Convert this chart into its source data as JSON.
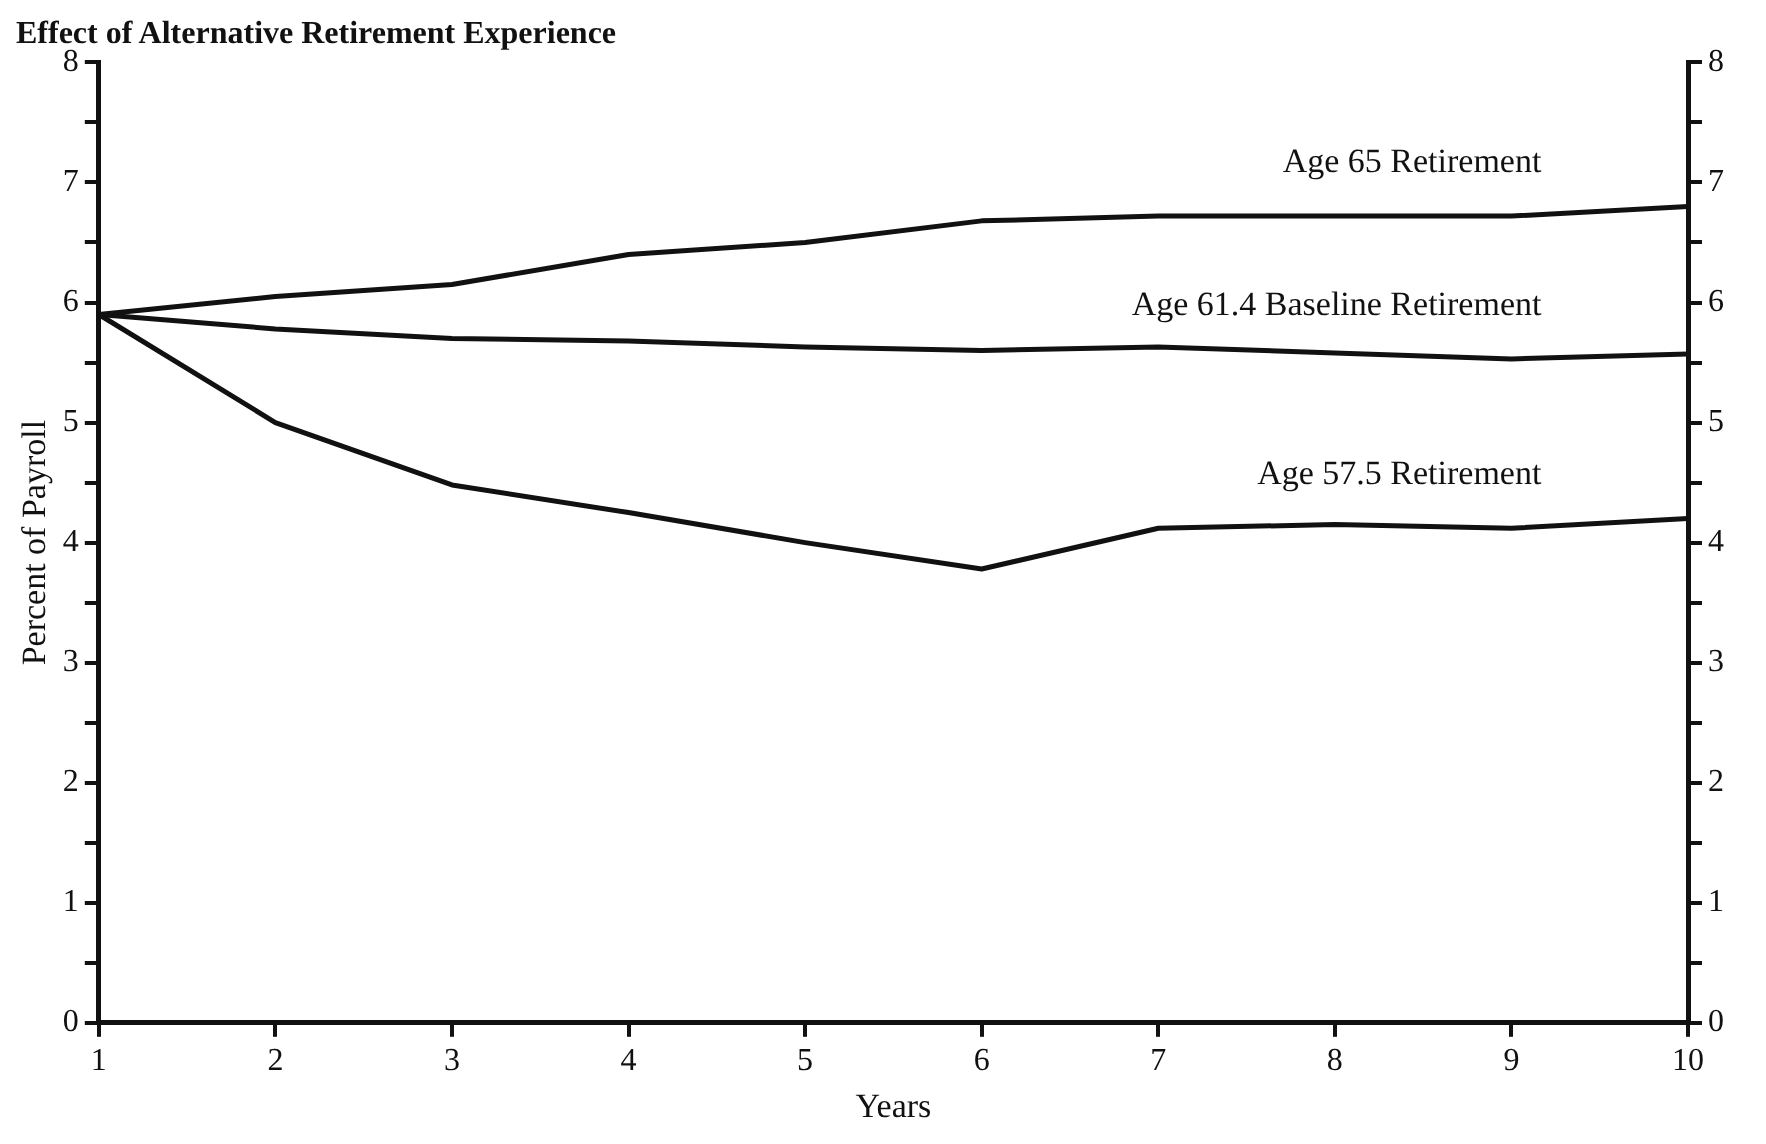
{
  "chart_data": {
    "type": "line",
    "title": "Effect of Alternative Retirement Experience",
    "xlabel": "Years",
    "ylabel": "Percent of Payroll",
    "x": [
      1,
      2,
      3,
      4,
      5,
      6,
      7,
      8,
      9,
      10
    ],
    "series": [
      {
        "name": "Age 65 Retirement",
        "color": "#111111",
        "values": [
          5.9,
          6.05,
          6.15,
          6.4,
          6.5,
          6.68,
          6.72,
          6.72,
          6.72,
          6.8
        ]
      },
      {
        "name": "Age 61.4 Baseline Retirement",
        "color": "#111111",
        "values": [
          5.9,
          5.78,
          5.7,
          5.68,
          5.63,
          5.6,
          5.63,
          5.58,
          5.53,
          5.57
        ]
      },
      {
        "name": "Age 57.5 Retirement",
        "color": "#111111",
        "values": [
          5.9,
          5.0,
          4.48,
          4.25,
          4.0,
          3.78,
          4.12,
          4.15,
          4.12,
          4.2
        ]
      }
    ],
    "xlim": [
      1,
      10
    ],
    "xticks": [
      1,
      2,
      3,
      4,
      5,
      6,
      7,
      8,
      9,
      10
    ],
    "ylim": [
      0,
      8
    ],
    "yticks": [
      0,
      {
        "value": 0.5,
        "label": null
      },
      1,
      {
        "value": 1.5,
        "label": null
      },
      2,
      {
        "value": 2.5,
        "label": null
      },
      3,
      {
        "value": 3.5,
        "label": null
      },
      4,
      {
        "value": 4.5,
        "label": null
      },
      5,
      {
        "value": 5.5,
        "label": null
      },
      6,
      {
        "value": 6.5,
        "label": null
      },
      7,
      {
        "value": 7.5,
        "label": null
      },
      8
    ],
    "y2lim": [
      0,
      8
    ],
    "y2ticks": [
      0,
      {
        "value": 0.5,
        "label": null
      },
      1,
      {
        "value": 1.5,
        "label": null
      },
      2,
      {
        "value": 2.5,
        "label": null
      },
      3,
      {
        "value": 3.5,
        "label": null
      },
      4,
      {
        "value": 4.5,
        "label": null
      },
      5,
      {
        "value": 5.5,
        "label": null
      },
      6,
      {
        "value": 6.5,
        "label": null
      },
      7,
      {
        "value": 7.5,
        "label": null
      },
      8
    ],
    "grid": false,
    "legend": false,
    "marker": "none",
    "line_style": "solid"
  }
}
